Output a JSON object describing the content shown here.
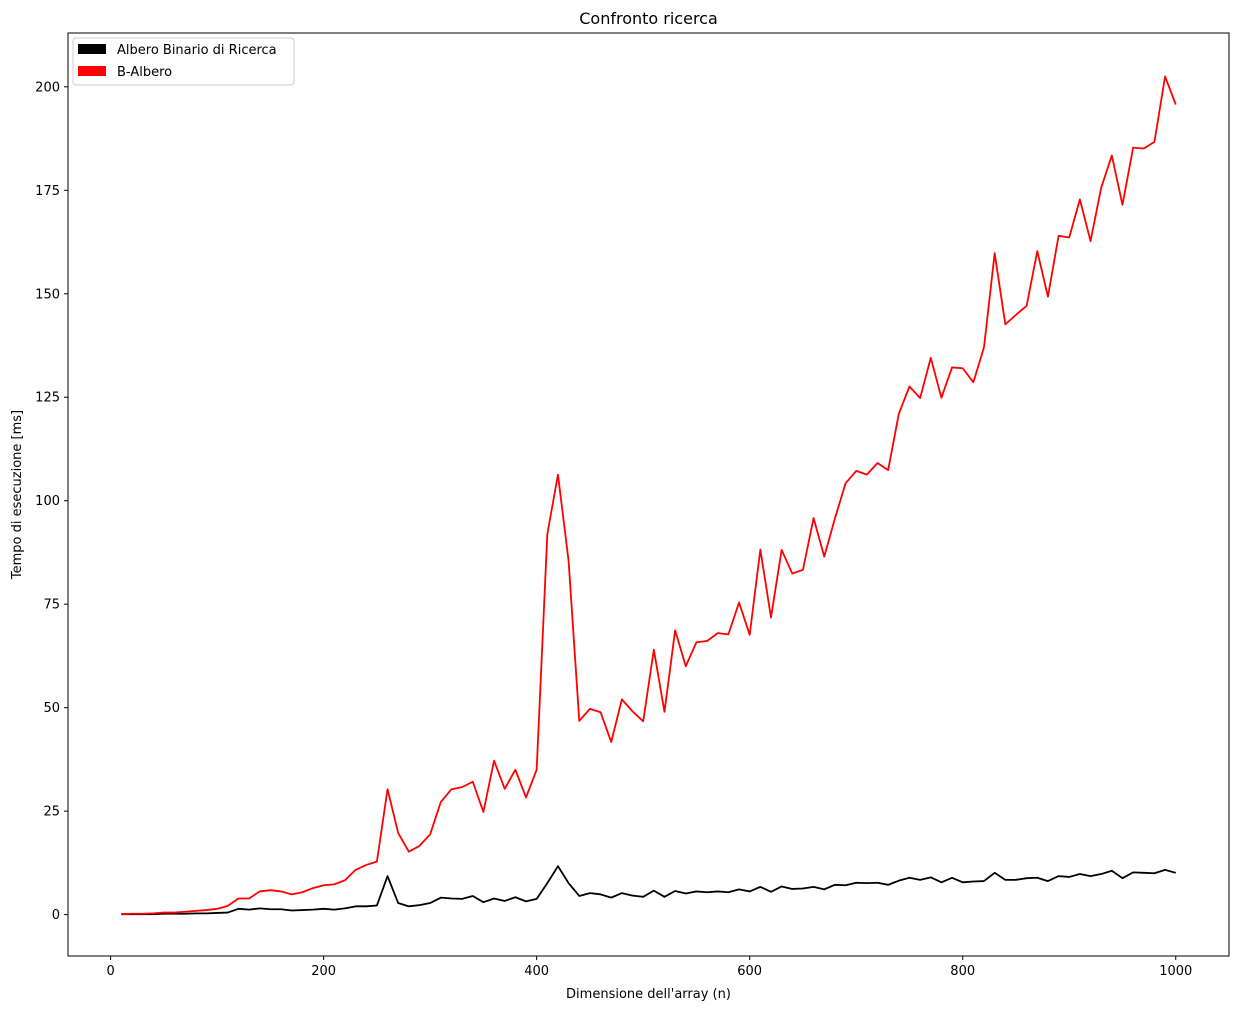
{
  "chart_data": {
    "type": "line",
    "title": "Confronto ricerca",
    "xlabel": "Dimensione dell'array (n)",
    "ylabel": "Tempo di esecuzione [ms]",
    "xlim": [
      -40,
      1050
    ],
    "ylim": [
      -10,
      213
    ],
    "xticks": [
      0,
      200,
      400,
      600,
      800,
      1000
    ],
    "yticks": [
      0,
      25,
      50,
      75,
      100,
      125,
      150,
      175,
      200
    ],
    "grid": false,
    "legend_position": "top-left",
    "x": [
      10,
      20,
      30,
      40,
      50,
      60,
      70,
      80,
      90,
      100,
      110,
      120,
      130,
      140,
      150,
      160,
      170,
      180,
      190,
      200,
      210,
      220,
      230,
      240,
      250,
      260,
      270,
      280,
      290,
      300,
      310,
      320,
      330,
      340,
      350,
      360,
      370,
      380,
      390,
      400,
      410,
      420,
      430,
      440,
      450,
      460,
      470,
      480,
      490,
      500,
      510,
      520,
      530,
      540,
      550,
      560,
      570,
      580,
      590,
      600,
      610,
      620,
      630,
      640,
      650,
      660,
      670,
      680,
      690,
      700,
      710,
      720,
      730,
      740,
      750,
      760,
      770,
      780,
      790,
      800,
      810,
      820,
      830,
      840,
      850,
      860,
      870,
      880,
      890,
      900,
      910,
      920,
      930,
      940,
      950,
      960,
      970,
      980,
      990,
      1000
    ],
    "series": [
      {
        "name": "Albero Binario di Ricerca",
        "color": "#000000",
        "values": [
          0.1,
          0.1,
          0.1,
          0.1,
          0.2,
          0.2,
          0.2,
          0.3,
          0.3,
          0.4,
          0.5,
          1.4,
          1.2,
          1.5,
          1.3,
          1.3,
          1.0,
          1.1,
          1.2,
          1.4,
          1.2,
          1.5,
          2.0,
          2.0,
          2.2,
          9.3,
          2.8,
          2.0,
          2.3,
          2.8,
          4.1,
          3.9,
          3.8,
          4.5,
          3.0,
          3.9,
          3.3,
          4.2,
          3.2,
          3.8,
          7.6,
          11.7,
          7.6,
          4.5,
          5.2,
          4.9,
          4.1,
          5.2,
          4.6,
          4.3,
          5.8,
          4.3,
          5.7,
          5.1,
          5.6,
          5.4,
          5.6,
          5.4,
          6.1,
          5.6,
          6.7,
          5.5,
          6.8,
          6.2,
          6.3,
          6.7,
          6.1,
          7.2,
          7.1,
          7.7,
          7.6,
          7.7,
          7.2,
          8.2,
          8.9,
          8.4,
          9.0,
          7.8,
          8.9,
          7.8,
          8.0,
          8.1,
          10.1,
          8.4,
          8.4,
          8.8,
          8.9,
          8.1,
          9.3,
          9.1,
          9.8,
          9.3,
          9.8,
          10.6,
          8.8,
          10.2,
          10.1,
          10.0,
          10.8,
          10.1
        ]
      },
      {
        "name": "B-Albero",
        "color": "#ff0000",
        "values": [
          0.1,
          0.2,
          0.2,
          0.3,
          0.5,
          0.5,
          0.7,
          0.9,
          1.1,
          1.4,
          2.1,
          3.9,
          3.9,
          5.6,
          5.9,
          5.6,
          4.9,
          5.4,
          6.4,
          7.1,
          7.3,
          8.3,
          10.8,
          12.0,
          12.8,
          30.3,
          19.7,
          15.2,
          16.6,
          19.4,
          27.2,
          30.3,
          30.8,
          32.1,
          24.8,
          37.2,
          30.4,
          35.0,
          28.3,
          35.0,
          91.9,
          106.3,
          85.4,
          46.8,
          49.7,
          48.9,
          41.7,
          52.0,
          49.1,
          46.7,
          64.0,
          49.0,
          68.7,
          60.0,
          65.8,
          66.1,
          68.0,
          67.7,
          75.4,
          67.6,
          88.2,
          71.8,
          88.1,
          82.4,
          83.3,
          95.8,
          86.5,
          95.7,
          104.2,
          107.2,
          106.3,
          109.1,
          107.4,
          121.0,
          127.6,
          124.8,
          134.5,
          124.9,
          132.2,
          132.0,
          128.6,
          137.1,
          159.8,
          142.6,
          144.9,
          147.1,
          160.3,
          149.3,
          164.0,
          163.6,
          172.8,
          162.7,
          175.6,
          183.4,
          171.5,
          185.3,
          185.1,
          186.7,
          202.5,
          195.7
        ]
      }
    ]
  }
}
